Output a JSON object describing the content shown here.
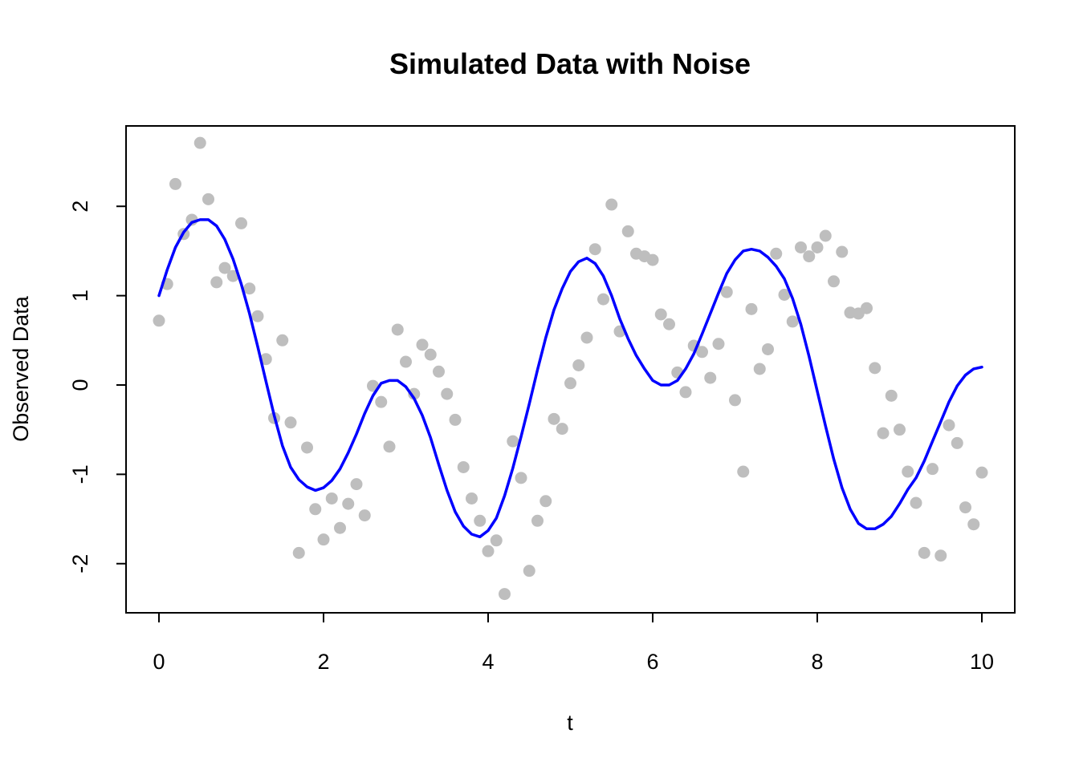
{
  "chart_data": {
    "type": "scatter",
    "title": "Simulated Data with Noise",
    "xlabel": "t",
    "ylabel": "Observed Data",
    "xlim": [
      -0.4,
      10.4
    ],
    "ylim": [
      -2.55,
      2.9
    ],
    "xticks": [
      0,
      2,
      4,
      6,
      8,
      10
    ],
    "xtick_labels": [
      "0",
      "2",
      "4",
      "6",
      "8",
      "10"
    ],
    "yticks": [
      -2,
      -1,
      0,
      1,
      2
    ],
    "ytick_labels": [
      "-2",
      "-1",
      "0",
      "1",
      "2"
    ],
    "grid": false,
    "legend": "none",
    "colors": {
      "points": "#bebebe",
      "curve": "#0000ff",
      "axis": "#000000"
    },
    "series": [
      {
        "kind": "points",
        "x": [
          0,
          0.1,
          0.2,
          0.3,
          0.4,
          0.5,
          0.6,
          0.7,
          0.8,
          0.9,
          1.0,
          1.1,
          1.2,
          1.3,
          1.4,
          1.5,
          1.6,
          1.7,
          1.8,
          1.9,
          2.0,
          2.1,
          2.2,
          2.3,
          2.4,
          2.5,
          2.6,
          2.7,
          2.8,
          2.9,
          3.0,
          3.1,
          3.2,
          3.3,
          3.4,
          3.5,
          3.6,
          3.7,
          3.8,
          3.9,
          4.0,
          4.1,
          4.2,
          4.3,
          4.4,
          4.5,
          4.6,
          4.7,
          4.8,
          4.9,
          5.0,
          5.1,
          5.2,
          5.3,
          5.4,
          5.5,
          5.6,
          5.7,
          5.8,
          5.9,
          6.0,
          6.1,
          6.2,
          6.3,
          6.4,
          6.5,
          6.6,
          6.7,
          6.8,
          6.9,
          7.0,
          7.1,
          7.2,
          7.3,
          7.4,
          7.5,
          7.6,
          7.7,
          7.8,
          7.9,
          8.0,
          8.1,
          8.2,
          8.3,
          8.4,
          8.5,
          8.6,
          8.7,
          8.8,
          8.9,
          9.0,
          9.1,
          9.2,
          9.3,
          9.4,
          9.5,
          9.6,
          9.7,
          9.8,
          9.9,
          10.0
        ],
        "y": [
          0.72,
          1.13,
          2.25,
          1.69,
          1.85,
          2.71,
          2.08,
          1.15,
          1.31,
          1.22,
          1.81,
          1.08,
          0.77,
          0.29,
          -0.37,
          0.5,
          -0.42,
          -1.88,
          -0.7,
          -1.39,
          -1.73,
          -1.27,
          -1.6,
          -1.33,
          -1.11,
          -1.46,
          -0.01,
          -0.19,
          -0.69,
          0.62,
          0.26,
          -0.1,
          0.45,
          0.34,
          0.15,
          -0.1,
          -0.39,
          -0.92,
          -1.27,
          -1.52,
          -1.86,
          -1.74,
          -2.34,
          -0.63,
          -1.04,
          -2.08,
          -1.52,
          -1.3,
          -0.38,
          -0.49,
          0.02,
          0.22,
          0.53,
          1.52,
          0.96,
          2.02,
          0.6,
          1.72,
          1.47,
          1.44,
          1.4,
          0.79,
          0.68,
          0.14,
          -0.08,
          0.44,
          0.37,
          0.08,
          0.46,
          1.04,
          -0.17,
          -0.97,
          0.85,
          0.18,
          0.4,
          1.47,
          1.01,
          0.71,
          1.54,
          1.44,
          1.54,
          1.67,
          1.16,
          1.49,
          0.81,
          0.8,
          0.86,
          0.19,
          -0.54,
          -0.12,
          -0.5,
          -0.97,
          -1.32,
          -1.88,
          -0.94,
          -1.91,
          -0.45,
          -0.65,
          -1.37,
          -1.56,
          -0.98
        ]
      },
      {
        "kind": "line",
        "x": [
          0,
          0.1,
          0.2,
          0.3,
          0.4,
          0.5,
          0.6,
          0.7,
          0.8,
          0.9,
          1.0,
          1.1,
          1.2,
          1.3,
          1.4,
          1.5,
          1.6,
          1.7,
          1.8,
          1.9,
          2.0,
          2.1,
          2.2,
          2.3,
          2.4,
          2.5,
          2.6,
          2.7,
          2.8,
          2.9,
          3.0,
          3.1,
          3.2,
          3.3,
          3.4,
          3.5,
          3.6,
          3.7,
          3.8,
          3.9,
          4.0,
          4.1,
          4.2,
          4.3,
          4.4,
          4.5,
          4.6,
          4.7,
          4.8,
          4.9,
          5.0,
          5.1,
          5.2,
          5.3,
          5.4,
          5.5,
          5.6,
          5.7,
          5.8,
          5.9,
          6.0,
          6.1,
          6.2,
          6.3,
          6.4,
          6.5,
          6.6,
          6.7,
          6.8,
          6.9,
          7.0,
          7.1,
          7.2,
          7.3,
          7.4,
          7.5,
          7.6,
          7.7,
          7.8,
          7.9,
          8.0,
          8.1,
          8.2,
          8.3,
          8.4,
          8.5,
          8.6,
          8.7,
          8.8,
          8.9,
          9.0,
          9.1,
          9.2,
          9.3,
          9.4,
          9.5,
          9.6,
          9.7,
          9.8,
          9.9,
          10.0
        ],
        "y": [
          1.0,
          1.29,
          1.54,
          1.71,
          1.82,
          1.85,
          1.85,
          1.78,
          1.63,
          1.41,
          1.13,
          0.8,
          0.43,
          0.04,
          -0.34,
          -0.68,
          -0.92,
          -1.06,
          -1.14,
          -1.18,
          -1.15,
          -1.07,
          -0.94,
          -0.76,
          -0.55,
          -0.32,
          -0.12,
          0.02,
          0.05,
          0.05,
          -0.02,
          -0.15,
          -0.34,
          -0.59,
          -0.89,
          -1.18,
          -1.42,
          -1.58,
          -1.67,
          -1.7,
          -1.63,
          -1.49,
          -1.24,
          -0.93,
          -0.58,
          -0.21,
          0.17,
          0.53,
          0.84,
          1.08,
          1.27,
          1.38,
          1.42,
          1.36,
          1.22,
          1.0,
          0.74,
          0.52,
          0.33,
          0.18,
          0.05,
          0.0,
          0.0,
          0.05,
          0.18,
          0.35,
          0.57,
          0.8,
          1.03,
          1.25,
          1.4,
          1.5,
          1.52,
          1.5,
          1.43,
          1.33,
          1.19,
          0.97,
          0.68,
          0.32,
          -0.07,
          -0.46,
          -0.83,
          -1.15,
          -1.39,
          -1.55,
          -1.61,
          -1.61,
          -1.56,
          -1.47,
          -1.33,
          -1.17,
          -1.04,
          -0.85,
          -0.63,
          -0.41,
          -0.19,
          -0.01,
          0.11,
          0.18,
          0.2
        ]
      }
    ]
  }
}
